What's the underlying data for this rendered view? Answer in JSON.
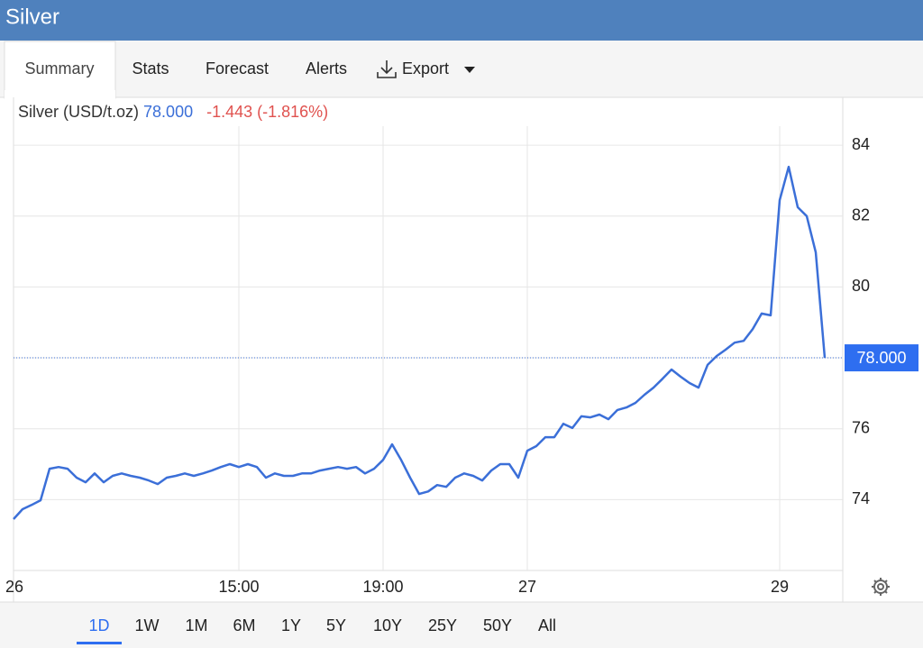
{
  "header": {
    "title": "Silver"
  },
  "tabs": [
    "Summary",
    "Stats",
    "Forecast",
    "Alerts",
    "Export"
  ],
  "ranges": [
    "1D",
    "1W",
    "1M",
    "6M",
    "1Y",
    "5Y",
    "10Y",
    "25Y",
    "50Y",
    "All"
  ],
  "chart_data": {
    "type": "line",
    "categories": [
      "26",
      null,
      null,
      null,
      null,
      null,
      null,
      null,
      null,
      null,
      null,
      null,
      null,
      null,
      null,
      null,
      null,
      null,
      null,
      null,
      null,
      null,
      null,
      null,
      null,
      "15:00",
      null,
      null,
      null,
      null,
      null,
      null,
      null,
      null,
      null,
      null,
      null,
      null,
      null,
      null,
      null,
      "19:00",
      null,
      null,
      null,
      null,
      null,
      null,
      null,
      null,
      null,
      null,
      null,
      null,
      null,
      null,
      null,
      "27",
      null,
      null,
      null,
      null,
      null,
      null,
      null,
      null,
      null,
      null,
      null,
      null,
      null,
      null,
      null,
      null,
      null,
      null,
      null,
      null,
      null,
      null,
      null,
      null,
      null,
      null,
      null,
      "29",
      null,
      null,
      null,
      null,
      null
    ],
    "series": [
      {
        "name": "Silver (USD/t.oz)",
        "color": "#3b6fd8",
        "values": [
          73.45,
          73.73,
          73.85,
          73.98,
          74.87,
          74.92,
          74.87,
          74.62,
          74.49,
          74.74,
          74.49,
          74.67,
          74.74,
          74.67,
          74.62,
          74.54,
          74.44,
          74.62,
          74.67,
          74.74,
          74.67,
          74.74,
          74.82,
          74.92,
          75.0,
          74.92,
          75.0,
          74.92,
          74.62,
          74.74,
          74.67,
          74.67,
          74.74,
          74.74,
          74.82,
          74.87,
          74.92,
          74.87,
          74.92,
          74.74,
          74.87,
          75.12,
          75.56,
          75.12,
          74.62,
          74.16,
          74.23,
          74.41,
          74.36,
          74.62,
          74.74,
          74.67,
          74.54,
          74.82,
          75.0,
          75.0,
          74.62,
          75.38,
          75.51,
          75.76,
          75.76,
          76.14,
          76.02,
          76.35,
          76.32,
          76.4,
          76.27,
          76.53,
          76.6,
          76.73,
          76.96,
          77.16,
          77.41,
          77.67,
          77.47,
          77.29,
          77.16,
          77.8,
          78.05,
          78.23,
          78.43,
          78.48,
          78.81,
          79.25,
          79.2,
          82.45,
          83.39,
          82.25,
          82.0,
          80.98,
          78.0
        ]
      }
    ],
    "price_label": {
      "value": 78,
      "label": "78.000"
    },
    "change_label": "-1.443 (-1.816%)",
    "ylim": [
      72,
      85.3
    ],
    "yticks": [
      74,
      76,
      78,
      80,
      82,
      84
    ],
    "grid": true
  }
}
